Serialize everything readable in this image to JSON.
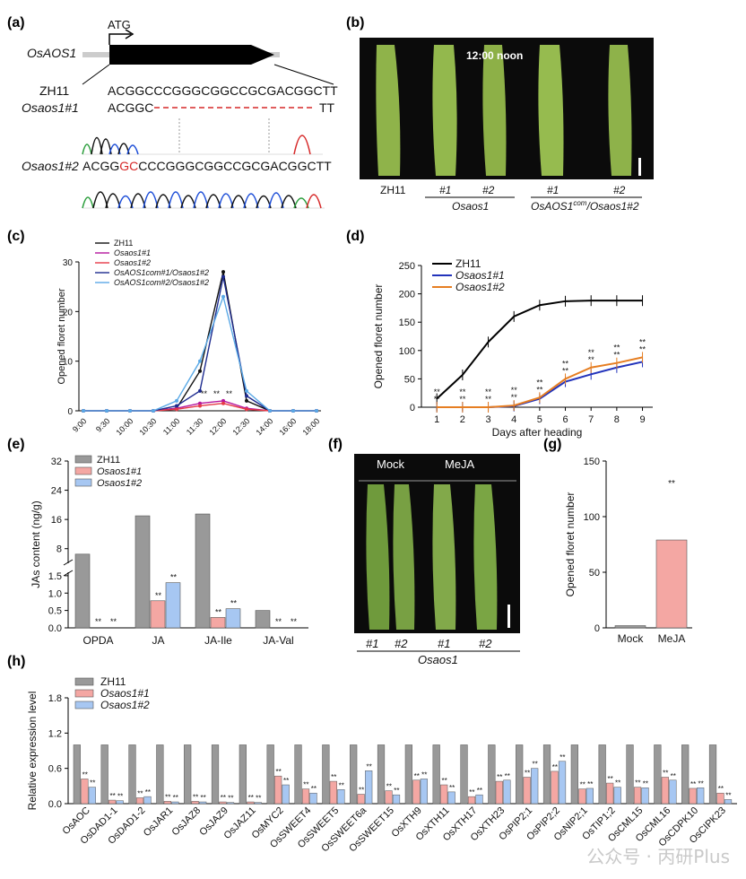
{
  "panels": {
    "a": "(a)",
    "b": "(b)",
    "c": "(c)",
    "d": "(d)",
    "e": "(e)",
    "f": "(f)",
    "g": "(g)",
    "h": "(h)"
  },
  "panel_a": {
    "gene": "OsAOS1",
    "atg": "ATG",
    "wt_label": "ZH11",
    "wt_seq": "ACGGCCCGGGCGGCCGCGACGGCTT",
    "m1_label": "Osaos1#1",
    "m1_seq_left": "ACGGC",
    "m1_seq_right": "TT",
    "m2_label": "Osaos1#2",
    "m2_seq_a": "ACGG",
    "m2_seq_ins": "GC",
    "m2_seq_b": "CCCGGGCGGCCGCGACGGCTT"
  },
  "panel_b": {
    "time": "12:00 noon",
    "zh11": "ZH11",
    "m1": "#1",
    "m2": "#2",
    "group1": "Osaos1",
    "c1": "#1",
    "c2": "#2",
    "group2_a": "OsAOS1",
    "group2_sup": "com",
    "group2_b": "/Osaos1#2"
  },
  "panel_f": {
    "mock": "Mock",
    "meja": "MeJA",
    "p1": "#1",
    "p2": "#2",
    "p3": "#1",
    "p4": "#2",
    "group": "Osaos1"
  },
  "chart_data": [
    {
      "id": "c",
      "type": "line",
      "ylabel": "Opened floret number",
      "categories": [
        "9:00",
        "9:30",
        "10:00",
        "10:30",
        "11:00",
        "11:30",
        "12:00",
        "12:30",
        "14:00",
        "16:00",
        "18:00"
      ],
      "ylim": [
        0,
        30
      ],
      "yticks": [
        0,
        10,
        20,
        30
      ],
      "significance": [
        "**",
        "**",
        "**"
      ],
      "series": [
        {
          "name": "ZH11",
          "color": "#111111",
          "values": [
            0,
            0,
            0,
            0,
            0.5,
            8,
            28,
            2,
            0,
            0,
            0
          ]
        },
        {
          "name": "Osaos1#1",
          "color": "#b5179e",
          "values": [
            0,
            0,
            0,
            0,
            0.5,
            1.5,
            2,
            0.5,
            0,
            0,
            0
          ]
        },
        {
          "name": "Osaos1#2",
          "color": "#e63946",
          "values": [
            0,
            0,
            0,
            0,
            0.3,
            1,
            1.5,
            0.3,
            0,
            0,
            0
          ]
        },
        {
          "name": "OsAOS1com#1/Osaos1#2",
          "color": "#1d2b8f",
          "values": [
            0,
            0,
            0,
            0,
            1,
            4,
            27,
            3,
            0,
            0,
            0
          ]
        },
        {
          "name": "OsAOS1com#2/Osaos1#2",
          "color": "#5aa9e6",
          "values": [
            0,
            0,
            0,
            0,
            2,
            10,
            23,
            4,
            0,
            0,
            0
          ]
        }
      ]
    },
    {
      "id": "d",
      "type": "line",
      "xlabel": "Days after heading",
      "ylabel": "Opened floret number",
      "x": [
        1,
        2,
        3,
        4,
        5,
        6,
        7,
        8,
        9
      ],
      "ylim": [
        0,
        250
      ],
      "yticks": [
        0,
        50,
        100,
        150,
        200,
        250
      ],
      "significance": "**",
      "series": [
        {
          "name": "ZH11",
          "color": "#000000",
          "values": [
            15,
            57,
            115,
            160,
            180,
            187,
            188,
            188,
            188
          ]
        },
        {
          "name": "Osaos1#1",
          "color": "#2233bb",
          "values": [
            0,
            0,
            0,
            2,
            15,
            45,
            58,
            70,
            80
          ]
        },
        {
          "name": "Osaos1#2",
          "color": "#e67e22",
          "values": [
            0,
            0,
            0,
            3,
            17,
            50,
            70,
            78,
            88
          ]
        }
      ]
    },
    {
      "id": "e",
      "type": "bar",
      "ylabel": "JAs content (ng/g)",
      "categories": [
        "OPDA",
        "JA",
        "JA-Ile",
        "JA-Val"
      ],
      "yticks_upper": [
        8,
        16,
        24,
        32
      ],
      "yticks_lower": [
        0,
        0.5,
        1.0,
        1.5
      ],
      "significance": "**",
      "series": [
        {
          "name": "ZH11",
          "color": "#999999",
          "values": [
            6.5,
            17,
            17.5,
            0.5
          ]
        },
        {
          "name": "Osaos1#1",
          "color": "#f4a7a3",
          "values": [
            0,
            0.78,
            0.3,
            0
          ]
        },
        {
          "name": "Osaos1#2",
          "color": "#a7c7f2",
          "values": [
            0,
            1.3,
            0.55,
            0
          ]
        }
      ]
    },
    {
      "id": "g",
      "type": "bar",
      "ylabel": "Opened floret number",
      "categories": [
        "Mock",
        "MeJA"
      ],
      "ylim": [
        0,
        150
      ],
      "yticks": [
        0,
        50,
        100,
        150
      ],
      "significance": "**",
      "values": [
        2,
        79
      ],
      "colors": [
        "#9a9a9a",
        "#f4a7a3"
      ]
    },
    {
      "id": "h",
      "type": "bar",
      "ylabel": "Relative expression level",
      "ylim": [
        0,
        1.8
      ],
      "yticks": [
        0,
        0.6,
        1.2,
        1.8
      ],
      "significance": "**",
      "categories": [
        "OsAOC",
        "OsDAD1-1",
        "OsDAD1-2",
        "OsJAR1",
        "OsJAZ8",
        "OsJAZ9",
        "OsJAZ11",
        "OsMYC2",
        "OsSWEET4",
        "OsSWEET5",
        "OsSWEET6a",
        "OsSWEET15",
        "OsXTH9",
        "OsXTH11",
        "OsXTH17",
        "OsXTH23",
        "OsPIP2;1",
        "OsPIP2;2",
        "OsNIP2;1",
        "OsTIP1;2",
        "OsCML15",
        "OsCML16",
        "OsCDPK10",
        "OsCIPK23"
      ],
      "series": [
        {
          "name": "ZH11",
          "color": "#999999",
          "values": [
            1,
            1,
            1,
            1,
            1,
            1,
            1,
            1,
            1,
            1,
            1,
            1,
            1,
            1,
            1,
            1,
            1,
            1,
            1,
            1,
            1,
            1,
            1,
            1
          ]
        },
        {
          "name": "Osaos1#1",
          "color": "#f4a7a3",
          "values": [
            0.42,
            0.06,
            0.1,
            0.04,
            0.04,
            0.03,
            0.03,
            0.47,
            0.25,
            0.38,
            0.16,
            0.22,
            0.4,
            0.32,
            0.12,
            0.38,
            0.45,
            0.55,
            0.25,
            0.35,
            0.28,
            0.45,
            0.26,
            0.18
          ]
        },
        {
          "name": "Osaos1#2",
          "color": "#a7c7f2",
          "values": [
            0.28,
            0.05,
            0.12,
            0.03,
            0.03,
            0.02,
            0.02,
            0.32,
            0.18,
            0.24,
            0.56,
            0.15,
            0.42,
            0.2,
            0.15,
            0.4,
            0.6,
            0.72,
            0.26,
            0.28,
            0.27,
            0.4,
            0.27,
            0.07
          ]
        }
      ]
    }
  ],
  "watermark": "公众号 · 丙研Plus"
}
